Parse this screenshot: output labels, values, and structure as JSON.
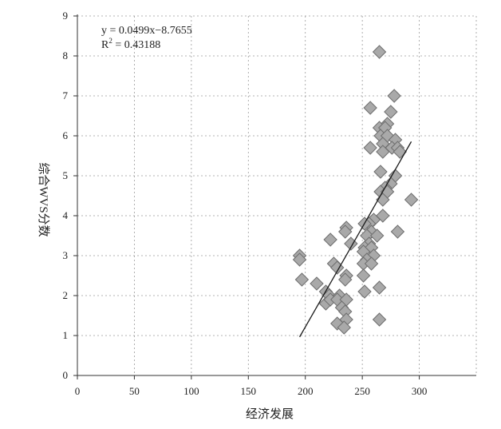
{
  "chart_data": {
    "type": "scatter",
    "title": "",
    "xlabel": "经济发展",
    "ylabel": "综合WVS分数",
    "xlim": [
      0,
      350
    ],
    "ylim": [
      0,
      9
    ],
    "xticks": [
      "0",
      "50",
      "100",
      "150",
      "200",
      "250",
      "300"
    ],
    "yticks": [
      "0",
      "1",
      "2",
      "3",
      "4",
      "5",
      "6",
      "7",
      "8",
      "9"
    ],
    "grid": true,
    "colors": {
      "marker_fill": "#a9a9a9",
      "marker_edge": "#6e6e6e",
      "trendline": "#1a1a1a"
    },
    "marker": "diamond",
    "equation": {
      "line1": "y = 0.0499x−8.7655",
      "line2_prefix": "R",
      "line2_sup": "2",
      "line2_suffix": " = 0.43188"
    },
    "trendline": {
      "slope": 0.0499,
      "intercept": -8.7655,
      "x_start": 195,
      "x_end": 293
    },
    "points": [
      [
        265,
        8.1
      ],
      [
        278,
        7.0
      ],
      [
        257,
        6.7
      ],
      [
        275,
        6.6
      ],
      [
        272,
        6.3
      ],
      [
        265,
        6.2
      ],
      [
        270,
        6.2
      ],
      [
        266,
        6.0
      ],
      [
        272,
        6.0
      ],
      [
        279,
        5.9
      ],
      [
        268,
        5.8
      ],
      [
        257,
        5.7
      ],
      [
        276,
        5.7
      ],
      [
        281,
        5.7
      ],
      [
        268,
        5.6
      ],
      [
        283,
        5.6
      ],
      [
        266,
        5.1
      ],
      [
        279,
        5.0
      ],
      [
        275,
        4.8
      ],
      [
        270,
        4.7
      ],
      [
        266,
        4.6
      ],
      [
        272,
        4.6
      ],
      [
        268,
        4.4
      ],
      [
        293,
        4.4
      ],
      [
        268,
        4.0
      ],
      [
        260,
        3.9
      ],
      [
        256,
        3.8
      ],
      [
        252,
        3.8
      ],
      [
        236,
        3.7
      ],
      [
        235,
        3.6
      ],
      [
        258,
        3.6
      ],
      [
        281,
        3.6
      ],
      [
        254,
        3.5
      ],
      [
        263,
        3.5
      ],
      [
        222,
        3.4
      ],
      [
        240,
        3.3
      ],
      [
        256,
        3.3
      ],
      [
        252,
        3.2
      ],
      [
        258,
        3.2
      ],
      [
        251,
        3.1
      ],
      [
        260,
        3.0
      ],
      [
        195,
        3.0
      ],
      [
        195,
        2.9
      ],
      [
        254,
        2.9
      ],
      [
        251,
        2.8
      ],
      [
        258,
        2.8
      ],
      [
        225,
        2.8
      ],
      [
        228,
        2.7
      ],
      [
        236,
        2.5
      ],
      [
        251,
        2.5
      ],
      [
        235,
        2.4
      ],
      [
        197,
        2.4
      ],
      [
        210,
        2.3
      ],
      [
        265,
        2.2
      ],
      [
        218,
        2.1
      ],
      [
        252,
        2.1
      ],
      [
        221,
        2.0
      ],
      [
        230,
        2.0
      ],
      [
        218,
        1.8
      ],
      [
        222,
        1.9
      ],
      [
        228,
        1.9
      ],
      [
        236,
        1.9
      ],
      [
        232,
        1.7
      ],
      [
        235,
        1.6
      ],
      [
        265,
        1.4
      ],
      [
        236,
        1.4
      ],
      [
        228,
        1.3
      ],
      [
        234,
        1.2
      ]
    ]
  }
}
